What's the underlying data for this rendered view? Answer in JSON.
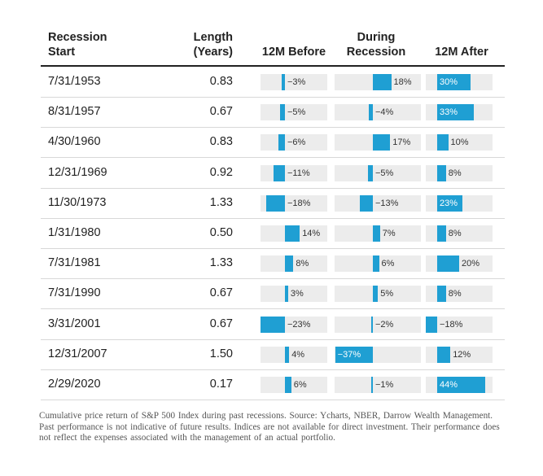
{
  "headers": {
    "start_line1": "Recession",
    "start_line2": "Start",
    "length_line1": "Length",
    "length_line2": "(Years)",
    "before": "12M Before",
    "during_line1": "During",
    "during_line2": "Recession",
    "after": "12M After"
  },
  "chart_data": {
    "type": "table",
    "columns": [
      "Recession Start",
      "Length (Years)",
      "12M Before",
      "During Recession",
      "12M After"
    ],
    "rows": [
      {
        "start": "7/31/1953",
        "length": "0.83",
        "before": -3,
        "during": 18,
        "after": 30
      },
      {
        "start": "8/31/1957",
        "length": "0.67",
        "before": -5,
        "during": -4,
        "after": 33
      },
      {
        "start": "4/30/1960",
        "length": "0.83",
        "before": -6,
        "during": 17,
        "after": 10
      },
      {
        "start": "12/31/1969",
        "length": "0.92",
        "before": -11,
        "during": -5,
        "after": 8
      },
      {
        "start": "11/30/1973",
        "length": "1.33",
        "before": -18,
        "during": -13,
        "after": 23
      },
      {
        "start": "1/31/1980",
        "length": "0.50",
        "before": 14,
        "during": 7,
        "after": 8
      },
      {
        "start": "7/31/1981",
        "length": "1.33",
        "before": 8,
        "during": 6,
        "after": 20
      },
      {
        "start": "7/31/1990",
        "length": "0.67",
        "before": 3,
        "during": 5,
        "after": 8
      },
      {
        "start": "3/31/2001",
        "length": "0.67",
        "before": -23,
        "during": -2,
        "after": -18
      },
      {
        "start": "12/31/2007",
        "length": "1.50",
        "before": 4,
        "during": -37,
        "after": 12
      },
      {
        "start": "2/29/2020",
        "length": "0.17",
        "before": 6,
        "during": -1,
        "after": 44
      }
    ],
    "unit": "%",
    "bar_color": "#1f9fd3",
    "track_color": "#ececec"
  },
  "caption": "Cumulative price return of S&P 500 Index during past recessions. Source: Ycharts, NBER, Darrow Wealth Management. Past performance is not indicative of future results. Indices are not available for direct investment. Their performance does not reflect the expenses associated with the management of an actual portfolio."
}
